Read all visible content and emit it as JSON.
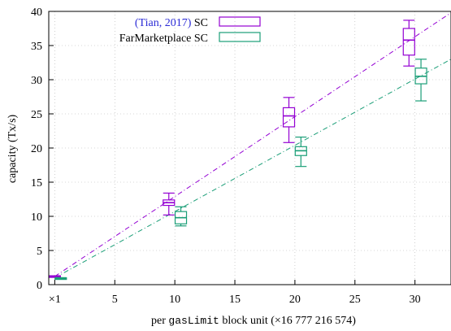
{
  "chart_data": {
    "type": "box",
    "xlabel_prefix": "per ",
    "xlabel_code": "gasLimit",
    "xlabel_suffix": " block unit (×16 777 216 574)",
    "ylabel": "capacity (Tx/s)",
    "xlim": [
      -0.5,
      33
    ],
    "ylim": [
      0,
      40
    ],
    "x_ticks": [
      {
        "value": 0,
        "label": "×1"
      },
      {
        "value": 5,
        "label": "5"
      },
      {
        "value": 10,
        "label": "10"
      },
      {
        "value": 15,
        "label": "15"
      },
      {
        "value": 20,
        "label": "20"
      },
      {
        "value": 25,
        "label": "25"
      },
      {
        "value": 30,
        "label": "30"
      }
    ],
    "y_ticks": [
      0,
      5,
      10,
      15,
      20,
      25,
      30,
      35,
      40
    ],
    "legend_position": "top-left",
    "series": [
      {
        "legend_cite": "(Tian, 2017)",
        "legend_rest": " SC",
        "color": "#9400d3",
        "boxes": [
          {
            "x": 0,
            "min": 1.1,
            "q1": 1.1,
            "median": 1.2,
            "q3": 1.3,
            "max": 1.3
          },
          {
            "x": 9.5,
            "min": 10.2,
            "q1": 11.6,
            "median": 12.0,
            "q3": 12.4,
            "max": 13.4
          },
          {
            "x": 19.5,
            "min": 20.8,
            "q1": 23.1,
            "median": 24.7,
            "q3": 25.9,
            "max": 27.4
          },
          {
            "x": 29.5,
            "min": 32.0,
            "q1": 33.6,
            "median": 35.8,
            "q3": 37.5,
            "max": 38.7
          }
        ],
        "fit": {
          "x0": 0,
          "y0": 1.2,
          "x1": 33,
          "y1": 39.8
        }
      },
      {
        "legend_cite": "",
        "legend_rest": "FarMarketplace SC",
        "color": "#1a9e77",
        "boxes": [
          {
            "x": 0.5,
            "min": 0.9,
            "q1": 0.9,
            "median": 1.0,
            "q3": 1.0,
            "max": 1.0
          },
          {
            "x": 10.5,
            "min": 8.6,
            "q1": 8.9,
            "median": 9.8,
            "q3": 10.7,
            "max": 11.4
          },
          {
            "x": 20.5,
            "min": 17.3,
            "q1": 18.9,
            "median": 19.6,
            "q3": 20.2,
            "max": 21.6
          },
          {
            "x": 30.5,
            "min": 26.9,
            "q1": 29.4,
            "median": 30.5,
            "q3": 31.7,
            "max": 33.0
          }
        ],
        "fit": {
          "x0": 0,
          "y0": 1.0,
          "x1": 33,
          "y1": 33.0
        }
      }
    ]
  }
}
